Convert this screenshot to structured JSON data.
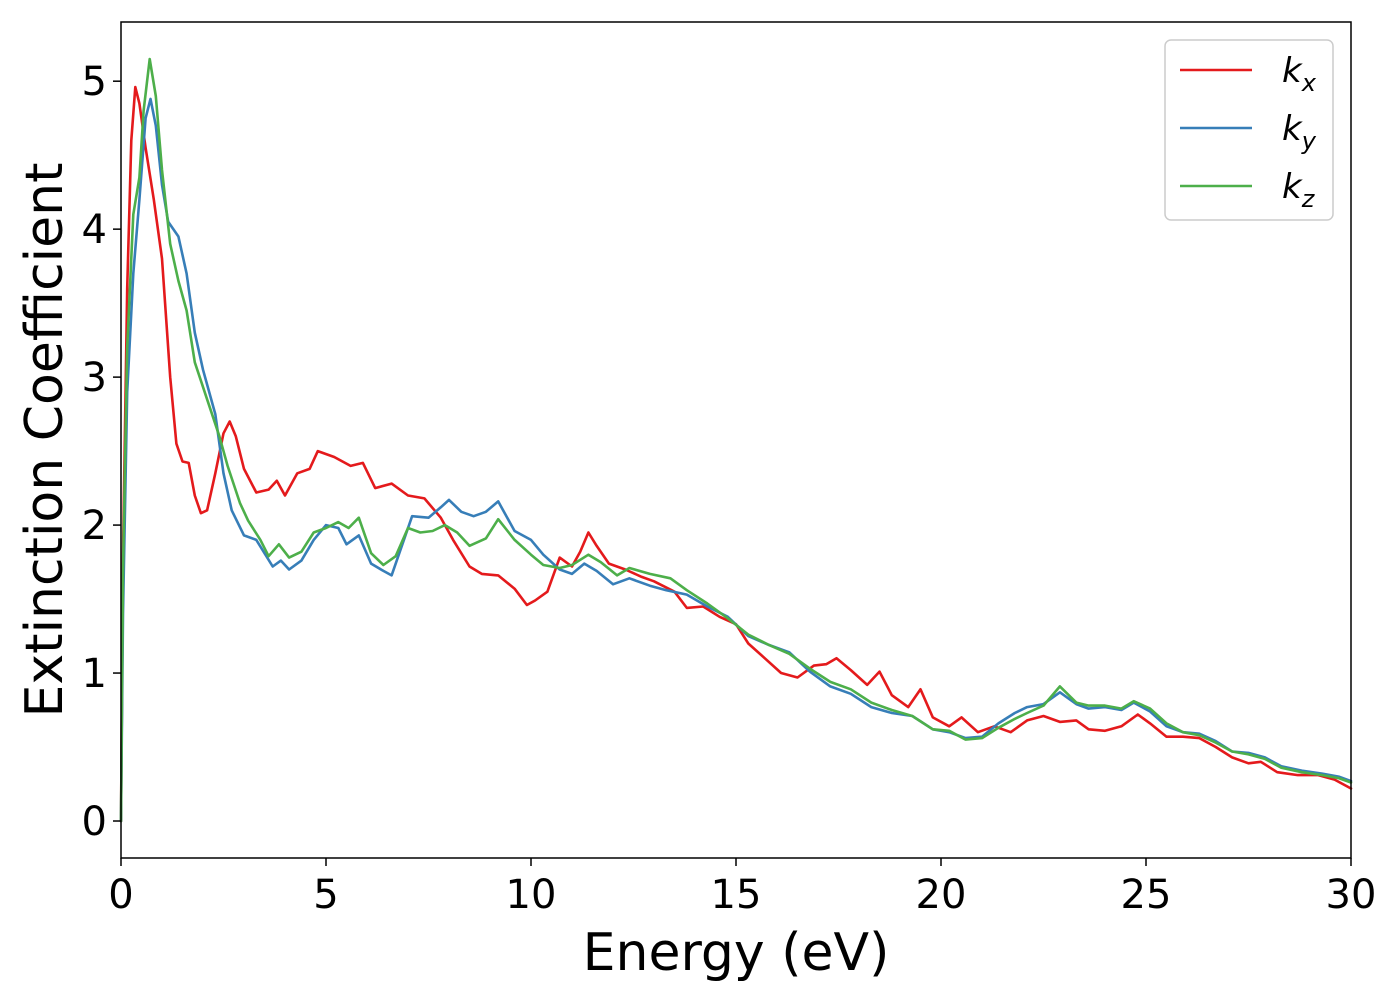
{
  "chart_data": {
    "type": "line",
    "xlabel": "Energy (eV)",
    "ylabel": "Extinction Coefficient",
    "xlim": [
      0,
      30
    ],
    "ylim": [
      -0.25,
      5.4
    ],
    "xticks": [
      "0",
      "5",
      "10",
      "15",
      "20",
      "25",
      "30"
    ],
    "yticks": [
      "0",
      "1",
      "2",
      "3",
      "4",
      "5"
    ],
    "grid": false,
    "legend_position": "top-right",
    "series": [
      {
        "name": "k",
        "subscript": "x",
        "color": "#e41a1c",
        "points": [
          [
            0,
            0
          ],
          [
            0.05,
            1.8
          ],
          [
            0.15,
            3.6
          ],
          [
            0.25,
            4.6
          ],
          [
            0.35,
            4.96
          ],
          [
            0.45,
            4.85
          ],
          [
            0.6,
            4.55
          ],
          [
            0.8,
            4.2
          ],
          [
            1.0,
            3.8
          ],
          [
            1.2,
            3.0
          ],
          [
            1.35,
            2.55
          ],
          [
            1.5,
            2.43
          ],
          [
            1.65,
            2.42
          ],
          [
            1.8,
            2.2
          ],
          [
            1.95,
            2.08
          ],
          [
            2.1,
            2.1
          ],
          [
            2.3,
            2.35
          ],
          [
            2.5,
            2.62
          ],
          [
            2.65,
            2.7
          ],
          [
            2.8,
            2.6
          ],
          [
            3.0,
            2.38
          ],
          [
            3.3,
            2.22
          ],
          [
            3.6,
            2.24
          ],
          [
            3.8,
            2.3
          ],
          [
            4.0,
            2.2
          ],
          [
            4.3,
            2.35
          ],
          [
            4.6,
            2.38
          ],
          [
            4.8,
            2.5
          ],
          [
            5.2,
            2.46
          ],
          [
            5.6,
            2.4
          ],
          [
            5.9,
            2.42
          ],
          [
            6.2,
            2.25
          ],
          [
            6.6,
            2.28
          ],
          [
            7.0,
            2.2
          ],
          [
            7.4,
            2.18
          ],
          [
            7.8,
            2.05
          ],
          [
            8.1,
            1.9
          ],
          [
            8.5,
            1.72
          ],
          [
            8.8,
            1.67
          ],
          [
            9.2,
            1.66
          ],
          [
            9.6,
            1.57
          ],
          [
            9.9,
            1.46
          ],
          [
            10.1,
            1.49
          ],
          [
            10.4,
            1.55
          ],
          [
            10.7,
            1.78
          ],
          [
            11.0,
            1.72
          ],
          [
            11.2,
            1.82
          ],
          [
            11.4,
            1.95
          ],
          [
            11.6,
            1.86
          ],
          [
            11.9,
            1.74
          ],
          [
            12.3,
            1.7
          ],
          [
            12.7,
            1.65
          ],
          [
            13.0,
            1.62
          ],
          [
            13.5,
            1.55
          ],
          [
            13.8,
            1.44
          ],
          [
            14.2,
            1.45
          ],
          [
            14.6,
            1.38
          ],
          [
            15.0,
            1.33
          ],
          [
            15.3,
            1.2
          ],
          [
            15.7,
            1.1
          ],
          [
            16.1,
            1.0
          ],
          [
            16.5,
            0.97
          ],
          [
            16.9,
            1.05
          ],
          [
            17.2,
            1.06
          ],
          [
            17.45,
            1.1
          ],
          [
            17.8,
            1.02
          ],
          [
            18.2,
            0.92
          ],
          [
            18.5,
            1.01
          ],
          [
            18.8,
            0.85
          ],
          [
            19.2,
            0.77
          ],
          [
            19.5,
            0.89
          ],
          [
            19.8,
            0.7
          ],
          [
            20.2,
            0.64
          ],
          [
            20.5,
            0.7
          ],
          [
            20.9,
            0.6
          ],
          [
            21.3,
            0.64
          ],
          [
            21.7,
            0.6
          ],
          [
            22.1,
            0.68
          ],
          [
            22.5,
            0.71
          ],
          [
            22.9,
            0.67
          ],
          [
            23.3,
            0.68
          ],
          [
            23.6,
            0.62
          ],
          [
            24.0,
            0.61
          ],
          [
            24.4,
            0.64
          ],
          [
            24.8,
            0.72
          ],
          [
            25.1,
            0.66
          ],
          [
            25.5,
            0.57
          ],
          [
            25.9,
            0.57
          ],
          [
            26.3,
            0.56
          ],
          [
            26.7,
            0.5
          ],
          [
            27.1,
            0.43
          ],
          [
            27.5,
            0.39
          ],
          [
            27.8,
            0.4
          ],
          [
            28.2,
            0.33
          ],
          [
            28.7,
            0.31
          ],
          [
            29.2,
            0.31
          ],
          [
            29.6,
            0.28
          ],
          [
            30.0,
            0.22
          ]
        ]
      },
      {
        "name": "k",
        "subscript": "y",
        "color": "#377eb8",
        "points": [
          [
            0,
            0
          ],
          [
            0.05,
            1.4
          ],
          [
            0.15,
            2.9
          ],
          [
            0.3,
            3.7
          ],
          [
            0.45,
            4.2
          ],
          [
            0.6,
            4.75
          ],
          [
            0.72,
            4.88
          ],
          [
            0.85,
            4.7
          ],
          [
            1.0,
            4.3
          ],
          [
            1.15,
            4.05
          ],
          [
            1.4,
            3.95
          ],
          [
            1.6,
            3.7
          ],
          [
            1.8,
            3.3
          ],
          [
            2.0,
            3.05
          ],
          [
            2.3,
            2.75
          ],
          [
            2.5,
            2.35
          ],
          [
            2.7,
            2.1
          ],
          [
            3.0,
            1.93
          ],
          [
            3.3,
            1.9
          ],
          [
            3.7,
            1.72
          ],
          [
            3.9,
            1.76
          ],
          [
            4.1,
            1.7
          ],
          [
            4.4,
            1.76
          ],
          [
            4.7,
            1.9
          ],
          [
            5.0,
            2.0
          ],
          [
            5.3,
            1.98
          ],
          [
            5.5,
            1.87
          ],
          [
            5.8,
            1.93
          ],
          [
            6.1,
            1.74
          ],
          [
            6.4,
            1.69
          ],
          [
            6.6,
            1.66
          ],
          [
            6.9,
            1.9
          ],
          [
            7.1,
            2.06
          ],
          [
            7.5,
            2.05
          ],
          [
            7.8,
            2.12
          ],
          [
            8.0,
            2.17
          ],
          [
            8.3,
            2.09
          ],
          [
            8.6,
            2.06
          ],
          [
            8.9,
            2.09
          ],
          [
            9.2,
            2.16
          ],
          [
            9.6,
            1.96
          ],
          [
            10.0,
            1.9
          ],
          [
            10.3,
            1.8
          ],
          [
            10.7,
            1.7
          ],
          [
            11.0,
            1.67
          ],
          [
            11.3,
            1.74
          ],
          [
            11.6,
            1.69
          ],
          [
            12.0,
            1.6
          ],
          [
            12.4,
            1.64
          ],
          [
            12.9,
            1.59
          ],
          [
            13.3,
            1.56
          ],
          [
            13.8,
            1.53
          ],
          [
            14.3,
            1.45
          ],
          [
            14.8,
            1.38
          ],
          [
            15.3,
            1.25
          ],
          [
            15.8,
            1.19
          ],
          [
            16.3,
            1.14
          ],
          [
            16.8,
            1.01
          ],
          [
            17.3,
            0.91
          ],
          [
            17.8,
            0.86
          ],
          [
            18.3,
            0.77
          ],
          [
            18.8,
            0.73
          ],
          [
            19.3,
            0.71
          ],
          [
            19.8,
            0.62
          ],
          [
            20.2,
            0.6
          ],
          [
            20.6,
            0.56
          ],
          [
            21.0,
            0.57
          ],
          [
            21.4,
            0.66
          ],
          [
            21.8,
            0.73
          ],
          [
            22.1,
            0.77
          ],
          [
            22.5,
            0.79
          ],
          [
            22.9,
            0.87
          ],
          [
            23.3,
            0.79
          ],
          [
            23.6,
            0.76
          ],
          [
            24.0,
            0.77
          ],
          [
            24.4,
            0.75
          ],
          [
            24.7,
            0.8
          ],
          [
            25.1,
            0.74
          ],
          [
            25.5,
            0.64
          ],
          [
            25.9,
            0.6
          ],
          [
            26.3,
            0.59
          ],
          [
            26.7,
            0.54
          ],
          [
            27.1,
            0.47
          ],
          [
            27.5,
            0.46
          ],
          [
            27.9,
            0.43
          ],
          [
            28.3,
            0.37
          ],
          [
            28.8,
            0.34
          ],
          [
            29.3,
            0.32
          ],
          [
            29.7,
            0.3
          ],
          [
            30.0,
            0.27
          ]
        ]
      },
      {
        "name": "k",
        "subscript": "z",
        "color": "#4daf4a",
        "points": [
          [
            0,
            0
          ],
          [
            0.05,
            1.7
          ],
          [
            0.15,
            3.2
          ],
          [
            0.3,
            4.1
          ],
          [
            0.45,
            4.35
          ],
          [
            0.55,
            4.8
          ],
          [
            0.7,
            5.15
          ],
          [
            0.85,
            4.9
          ],
          [
            1.0,
            4.4
          ],
          [
            1.2,
            3.9
          ],
          [
            1.4,
            3.65
          ],
          [
            1.6,
            3.45
          ],
          [
            1.8,
            3.1
          ],
          [
            2.1,
            2.85
          ],
          [
            2.4,
            2.6
          ],
          [
            2.6,
            2.4
          ],
          [
            2.9,
            2.15
          ],
          [
            3.1,
            2.03
          ],
          [
            3.4,
            1.9
          ],
          [
            3.6,
            1.79
          ],
          [
            3.85,
            1.87
          ],
          [
            4.1,
            1.78
          ],
          [
            4.4,
            1.82
          ],
          [
            4.7,
            1.95
          ],
          [
            5.0,
            1.98
          ],
          [
            5.3,
            2.02
          ],
          [
            5.55,
            1.98
          ],
          [
            5.8,
            2.05
          ],
          [
            6.1,
            1.81
          ],
          [
            6.4,
            1.73
          ],
          [
            6.7,
            1.79
          ],
          [
            7.0,
            1.98
          ],
          [
            7.3,
            1.95
          ],
          [
            7.6,
            1.96
          ],
          [
            7.9,
            2.0
          ],
          [
            8.2,
            1.95
          ],
          [
            8.5,
            1.86
          ],
          [
            8.9,
            1.91
          ],
          [
            9.2,
            2.04
          ],
          [
            9.6,
            1.9
          ],
          [
            10.0,
            1.8
          ],
          [
            10.3,
            1.73
          ],
          [
            10.7,
            1.71
          ],
          [
            11.0,
            1.73
          ],
          [
            11.4,
            1.8
          ],
          [
            11.7,
            1.75
          ],
          [
            12.1,
            1.66
          ],
          [
            12.4,
            1.71
          ],
          [
            12.9,
            1.67
          ],
          [
            13.4,
            1.64
          ],
          [
            13.8,
            1.56
          ],
          [
            14.3,
            1.47
          ],
          [
            14.8,
            1.37
          ],
          [
            15.3,
            1.26
          ],
          [
            15.8,
            1.19
          ],
          [
            16.3,
            1.13
          ],
          [
            16.8,
            1.03
          ],
          [
            17.3,
            0.94
          ],
          [
            17.8,
            0.89
          ],
          [
            18.3,
            0.8
          ],
          [
            18.8,
            0.75
          ],
          [
            19.3,
            0.71
          ],
          [
            19.8,
            0.62
          ],
          [
            20.2,
            0.61
          ],
          [
            20.6,
            0.55
          ],
          [
            21.0,
            0.56
          ],
          [
            21.4,
            0.63
          ],
          [
            21.8,
            0.69
          ],
          [
            22.1,
            0.73
          ],
          [
            22.5,
            0.78
          ],
          [
            22.9,
            0.91
          ],
          [
            23.3,
            0.8
          ],
          [
            23.6,
            0.78
          ],
          [
            24.0,
            0.78
          ],
          [
            24.4,
            0.76
          ],
          [
            24.7,
            0.81
          ],
          [
            25.1,
            0.76
          ],
          [
            25.5,
            0.66
          ],
          [
            25.9,
            0.6
          ],
          [
            26.3,
            0.58
          ],
          [
            26.7,
            0.53
          ],
          [
            27.1,
            0.47
          ],
          [
            27.5,
            0.45
          ],
          [
            27.9,
            0.42
          ],
          [
            28.3,
            0.36
          ],
          [
            28.8,
            0.33
          ],
          [
            29.3,
            0.31
          ],
          [
            29.7,
            0.29
          ],
          [
            30.0,
            0.26
          ]
        ]
      }
    ]
  }
}
